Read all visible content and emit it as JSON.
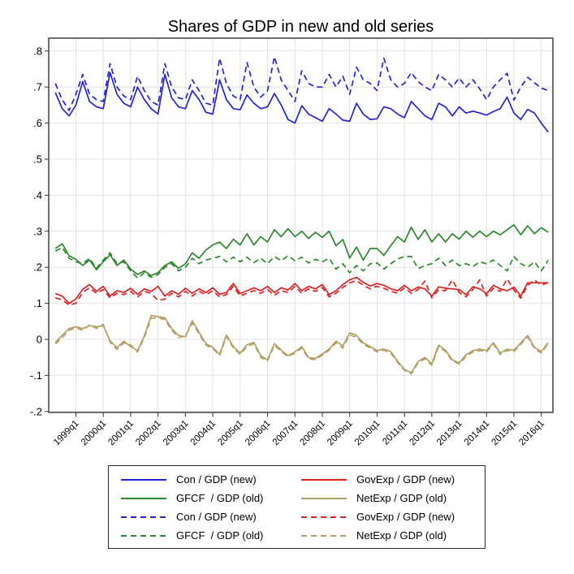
{
  "chart_data": {
    "type": "line",
    "title": "Shares of GDP in new and old series",
    "frequency": "quarterly",
    "x_start": "1998q2",
    "x_end": "2016q2",
    "n_points": 73,
    "grid": true,
    "legend_position": "bottom",
    "ylim": [
      -0.2,
      0.8
    ],
    "y_ticks": [
      0.8,
      0.7,
      0.6,
      0.5,
      0.4,
      0.3,
      0.2,
      0.1,
      0,
      -0.1,
      -0.2
    ],
    "y_tick_labels": [
      ".8",
      ".7",
      ".6",
      ".5",
      ".4",
      ".3",
      ".2",
      ".1",
      "0",
      "-.1",
      "-.2"
    ],
    "x_tick_labels": [
      "1999q1",
      "2000q1",
      "2001q1",
      "2002q1",
      "2003q1",
      "2004q1",
      "2005q1",
      "2006q1",
      "2007q1",
      "2008q1",
      "2009q1",
      "2010q1",
      "2011q1",
      "2012q1",
      "2013q1",
      "2014q1",
      "2015q1",
      "2016q1"
    ],
    "colors": {
      "blue": "#2323dc",
      "green": "#2e862e",
      "red": "#e02020",
      "tan": "#b2a064",
      "grid": "#e2e2e2",
      "border": "#606060"
    },
    "series": [
      {
        "name": "Con / GDP (new)",
        "style": "solid",
        "color": "#2323dc",
        "values": [
          0.685,
          0.64,
          0.62,
          0.65,
          0.715,
          0.66,
          0.645,
          0.64,
          0.74,
          0.68,
          0.655,
          0.645,
          0.7,
          0.665,
          0.64,
          0.625,
          0.735,
          0.67,
          0.645,
          0.64,
          0.69,
          0.665,
          0.63,
          0.625,
          0.72,
          0.665,
          0.64,
          0.637,
          0.678,
          0.655,
          0.64,
          0.645,
          0.682,
          0.65,
          0.61,
          0.6,
          0.648,
          0.625,
          0.615,
          0.605,
          0.64,
          0.625,
          0.608,
          0.605,
          0.655,
          0.625,
          0.61,
          0.612,
          0.645,
          0.64,
          0.625,
          0.615,
          0.66,
          0.64,
          0.62,
          0.61,
          0.655,
          0.645,
          0.62,
          0.645,
          0.628,
          0.633,
          0.628,
          0.622,
          0.632,
          0.64,
          0.672,
          0.628,
          0.61,
          0.638,
          0.628,
          0.6,
          0.575
        ]
      },
      {
        "name": "GFCF  / GDP (old)",
        "style": "solid",
        "color": "#2e862e",
        "values": [
          0.252,
          0.265,
          0.232,
          0.222,
          0.205,
          0.22,
          0.193,
          0.215,
          0.235,
          0.205,
          0.22,
          0.195,
          0.18,
          0.19,
          0.177,
          0.185,
          0.205,
          0.215,
          0.197,
          0.21,
          0.24,
          0.225,
          0.248,
          0.262,
          0.27,
          0.252,
          0.278,
          0.262,
          0.293,
          0.262,
          0.285,
          0.27,
          0.304,
          0.285,
          0.307,
          0.285,
          0.3,
          0.28,
          0.297,
          0.283,
          0.3,
          0.26,
          0.277,
          0.226,
          0.256,
          0.22,
          0.252,
          0.252,
          0.233,
          0.26,
          0.285,
          0.27,
          0.311,
          0.277,
          0.304,
          0.27,
          0.293,
          0.27,
          0.293,
          0.278,
          0.3,
          0.283,
          0.3,
          0.285,
          0.3,
          0.29,
          0.304,
          0.318,
          0.29,
          0.315,
          0.293,
          0.31,
          0.297
        ]
      },
      {
        "name": "GovExp / GDP (new)",
        "style": "solid",
        "color": "#e02020",
        "values": [
          0.127,
          0.12,
          0.1,
          0.112,
          0.139,
          0.152,
          0.133,
          0.147,
          0.12,
          0.135,
          0.13,
          0.142,
          0.125,
          0.14,
          0.133,
          0.147,
          0.12,
          0.135,
          0.125,
          0.142,
          0.128,
          0.14,
          0.13,
          0.143,
          0.125,
          0.13,
          0.155,
          0.127,
          0.135,
          0.143,
          0.135,
          0.147,
          0.13,
          0.143,
          0.137,
          0.155,
          0.135,
          0.147,
          0.14,
          0.152,
          0.124,
          0.135,
          0.152,
          0.165,
          0.172,
          0.158,
          0.148,
          0.155,
          0.15,
          0.14,
          0.135,
          0.15,
          0.135,
          0.145,
          0.14,
          0.12,
          0.146,
          0.142,
          0.14,
          0.138,
          0.124,
          0.146,
          0.14,
          0.127,
          0.15,
          0.14,
          0.135,
          0.145,
          0.12,
          0.157,
          0.157,
          0.157,
          0.157
        ]
      },
      {
        "name": "NetExp / GDP (old)",
        "style": "solid",
        "color": "#b2a064",
        "values": [
          -0.008,
          0.011,
          0.03,
          0.035,
          0.03,
          0.038,
          0.035,
          0.038,
          -0.004,
          -0.023,
          -0.005,
          -0.02,
          -0.031,
          0.01,
          0.066,
          0.063,
          0.06,
          0.03,
          0.011,
          0.007,
          0.052,
          0.02,
          -0.012,
          -0.022,
          -0.042,
          0.012,
          -0.02,
          -0.038,
          -0.015,
          -0.008,
          -0.045,
          -0.057,
          -0.012,
          -0.03,
          -0.045,
          -0.035,
          -0.02,
          -0.05,
          -0.053,
          -0.04,
          -0.027,
          -0.005,
          -0.018,
          0.018,
          0.011,
          -0.01,
          -0.02,
          -0.031,
          -0.027,
          -0.034,
          -0.06,
          -0.083,
          -0.093,
          -0.061,
          -0.05,
          -0.068,
          -0.016,
          -0.03,
          -0.057,
          -0.065,
          -0.043,
          -0.031,
          -0.027,
          -0.031,
          -0.009,
          -0.038,
          -0.027,
          -0.03,
          -0.01,
          0.011,
          -0.022,
          -0.034,
          -0.009
        ]
      },
      {
        "name": "Con / GDP (new)",
        "style": "dashed",
        "color": "#2323dc",
        "values": [
          0.71,
          0.665,
          0.635,
          0.68,
          0.735,
          0.68,
          0.665,
          0.66,
          0.765,
          0.7,
          0.675,
          0.665,
          0.73,
          0.69,
          0.66,
          0.65,
          0.765,
          0.7,
          0.67,
          0.665,
          0.72,
          0.69,
          0.655,
          0.65,
          0.78,
          0.71,
          0.675,
          0.665,
          0.768,
          0.7,
          0.672,
          0.69,
          0.784,
          0.72,
          0.69,
          0.66,
          0.745,
          0.71,
          0.7,
          0.7,
          0.735,
          0.7,
          0.73,
          0.68,
          0.755,
          0.72,
          0.71,
          0.69,
          0.78,
          0.72,
          0.7,
          0.71,
          0.74,
          0.715,
          0.7,
          0.69,
          0.735,
          0.72,
          0.7,
          0.725,
          0.7,
          0.72,
          0.695,
          0.665,
          0.7,
          0.72,
          0.738,
          0.664,
          0.7,
          0.727,
          0.712,
          0.697,
          0.69
        ]
      },
      {
        "name": "GFCF  / GDP (old)",
        "style": "dashed",
        "color": "#2e862e",
        "values": [
          0.245,
          0.255,
          0.225,
          0.215,
          0.21,
          0.225,
          0.197,
          0.22,
          0.24,
          0.21,
          0.215,
          0.19,
          0.17,
          0.185,
          0.172,
          0.18,
          0.2,
          0.21,
          0.19,
          0.2,
          0.225,
          0.21,
          0.22,
          0.225,
          0.23,
          0.215,
          0.228,
          0.215,
          0.228,
          0.213,
          0.225,
          0.21,
          0.23,
          0.218,
          0.232,
          0.218,
          0.228,
          0.212,
          0.222,
          0.215,
          0.225,
          0.195,
          0.21,
          0.185,
          0.205,
          0.19,
          0.21,
          0.212,
          0.195,
          0.21,
          0.223,
          0.23,
          0.23,
          0.196,
          0.205,
          0.21,
          0.225,
          0.205,
          0.22,
          0.205,
          0.21,
          0.202,
          0.215,
          0.21,
          0.22,
          0.205,
          0.19,
          0.23,
          0.21,
          0.2,
          0.215,
          0.19,
          0.22
        ]
      },
      {
        "name": "GovExp / GDP (new)",
        "style": "dashed",
        "color": "#e02020",
        "values": [
          0.115,
          0.11,
          0.095,
          0.1,
          0.13,
          0.143,
          0.128,
          0.138,
          0.115,
          0.128,
          0.124,
          0.133,
          0.118,
          0.133,
          0.127,
          0.108,
          0.112,
          0.128,
          0.118,
          0.133,
          0.12,
          0.133,
          0.124,
          0.135,
          0.118,
          0.124,
          0.147,
          0.12,
          0.128,
          0.135,
          0.128,
          0.138,
          0.122,
          0.135,
          0.13,
          0.147,
          0.128,
          0.14,
          0.133,
          0.144,
          0.118,
          0.128,
          0.144,
          0.157,
          0.163,
          0.15,
          0.14,
          0.147,
          0.142,
          0.133,
          0.128,
          0.143,
          0.128,
          0.138,
          0.162,
          0.115,
          0.138,
          0.135,
          0.165,
          0.13,
          0.118,
          0.138,
          0.165,
          0.12,
          0.142,
          0.133,
          0.168,
          0.137,
          0.114,
          0.15,
          0.165,
          0.15,
          0.158
        ]
      },
      {
        "name": "NetExp / GDP (old)",
        "style": "dashed",
        "color": "#b2a064",
        "values": [
          -0.013,
          0.005,
          0.025,
          0.032,
          0.025,
          0.04,
          0.03,
          0.042,
          -0.008,
          -0.028,
          -0.01,
          -0.015,
          -0.035,
          0.005,
          0.058,
          0.06,
          0.055,
          0.025,
          0.005,
          0.01,
          0.045,
          0.015,
          -0.016,
          -0.025,
          -0.045,
          0.008,
          -0.024,
          -0.042,
          -0.02,
          -0.012,
          -0.05,
          -0.06,
          -0.016,
          -0.034,
          -0.048,
          -0.038,
          -0.024,
          -0.054,
          -0.056,
          -0.044,
          -0.03,
          -0.01,
          -0.024,
          0.012,
          0.006,
          -0.014,
          -0.024,
          -0.035,
          -0.03,
          -0.038,
          -0.064,
          -0.086,
          -0.096,
          -0.065,
          -0.054,
          -0.072,
          -0.02,
          -0.034,
          -0.06,
          -0.068,
          -0.048,
          -0.035,
          -0.031,
          -0.035,
          -0.013,
          -0.042,
          -0.031,
          -0.034,
          -0.014,
          0.007,
          -0.026,
          -0.038,
          -0.012
        ]
      }
    ],
    "legend": {
      "columns": [
        [
          0,
          1,
          4,
          5
        ],
        [
          2,
          3,
          6,
          7
        ]
      ]
    }
  }
}
